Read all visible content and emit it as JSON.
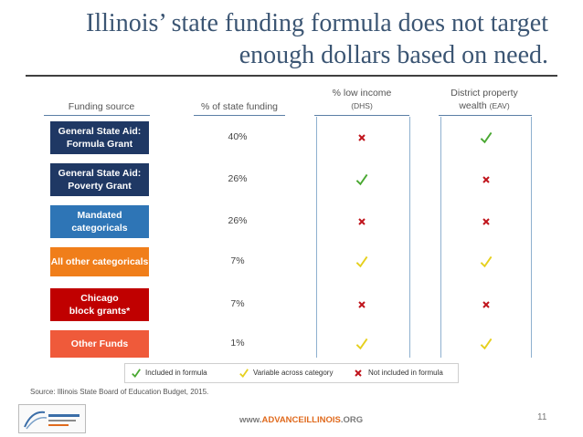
{
  "title": {
    "line1": "Illinois’ state funding formula does not target",
    "line2": "enough dollars based on need."
  },
  "headers": {
    "source": "Funding source",
    "pct": "% of state funding",
    "income": "% low income",
    "income_sub": "(DHS)",
    "wealth": "District property",
    "wealth_l2": "wealth",
    "wealth_sub": "(EAV)"
  },
  "rows": [
    {
      "l1": "General State Aid:",
      "l2": "Formula Grant",
      "pct": "40%",
      "income": "x",
      "wealth": "check",
      "color": "#1f3864"
    },
    {
      "l1": "General State Aid:",
      "l2": "Poverty Grant",
      "pct": "26%",
      "income": "check",
      "wealth": "x",
      "color": "#1f3864"
    },
    {
      "l1": "Mandated",
      "l2": "categoricals",
      "pct": "26%",
      "income": "x",
      "wealth": "x",
      "color": "#2e75b6"
    },
    {
      "l1": "All other categoricals",
      "l2": "",
      "pct": "7%",
      "income": "var",
      "wealth": "var",
      "color": "#f07e1a"
    },
    {
      "l1": "Chicago",
      "l2": "block grants*",
      "pct": "7%",
      "income": "x",
      "wealth": "x",
      "color": "#c00000"
    },
    {
      "l1": "Other Funds",
      "l2": "",
      "pct": "1%",
      "income": "var",
      "wealth": "var",
      "color": "#ef5a3a"
    }
  ],
  "legend": {
    "included": "Included in formula",
    "variable": "Variable across category",
    "not_included": "Not included in formula"
  },
  "source": "Source: Illinois State Board of Education Budget, 2015.",
  "website": {
    "prefix": "www.",
    "brand": "ADVANCEILLINOIS",
    "suffix": ".ORG"
  },
  "page_number": "11",
  "colors": {
    "check": "#4aa832",
    "variable": "#e6d01e",
    "x": "#c0141c"
  },
  "icons": {
    "check": "check-icon",
    "variable": "check-icon-yellow",
    "x": "x-icon"
  }
}
